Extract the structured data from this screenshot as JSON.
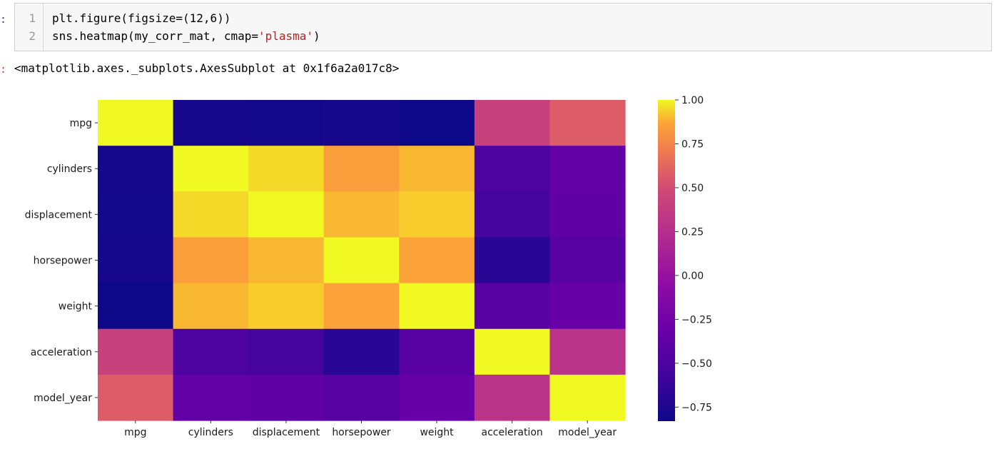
{
  "cell": {
    "in_prompt": ":",
    "out_prompt": ":",
    "line_numbers": [
      "1",
      "2"
    ],
    "code_lines": [
      {
        "pre": "plt.figure(figsize=(12,6))",
        "str": "",
        "post": ""
      },
      {
        "pre": "sns.heatmap(my_corr_mat, cmap=",
        "str": "'plasma'",
        "post": ")"
      }
    ],
    "output_text": "<matplotlib.axes._subplots.AxesSubplot at 0x1f6a2a017c8>"
  },
  "chart_data": {
    "type": "heatmap",
    "colormap": "plasma",
    "row_labels": [
      "mpg",
      "cylinders",
      "displacement",
      "horsepower",
      "weight",
      "acceleration",
      "model_year"
    ],
    "col_labels": [
      "mpg",
      "cylinders",
      "displacement",
      "horsepower",
      "weight",
      "acceleration",
      "model_year"
    ],
    "values": [
      [
        1.0,
        -0.78,
        -0.8,
        -0.78,
        -0.83,
        0.42,
        0.58
      ],
      [
        -0.78,
        1.0,
        0.95,
        0.84,
        0.9,
        -0.5,
        -0.35
      ],
      [
        -0.8,
        0.95,
        1.0,
        0.9,
        0.93,
        -0.54,
        -0.37
      ],
      [
        -0.78,
        0.84,
        0.9,
        1.0,
        0.86,
        -0.69,
        -0.42
      ],
      [
        -0.83,
        0.9,
        0.93,
        0.86,
        1.0,
        -0.42,
        -0.31
      ],
      [
        0.42,
        -0.5,
        -0.54,
        -0.69,
        -0.42,
        1.0,
        0.29
      ],
      [
        0.58,
        -0.35,
        -0.37,
        -0.42,
        -0.31,
        0.29,
        1.0
      ]
    ],
    "vmin": -0.83,
    "vmax": 1.0,
    "colorbar_ticks": [
      "1.00",
      "0.75",
      "0.50",
      "0.25",
      "0.00",
      "−0.25",
      "−0.50",
      "−0.75"
    ],
    "colorbar_tick_values": [
      1.0,
      0.75,
      0.5,
      0.25,
      0.0,
      -0.25,
      -0.5,
      -0.75
    ]
  }
}
